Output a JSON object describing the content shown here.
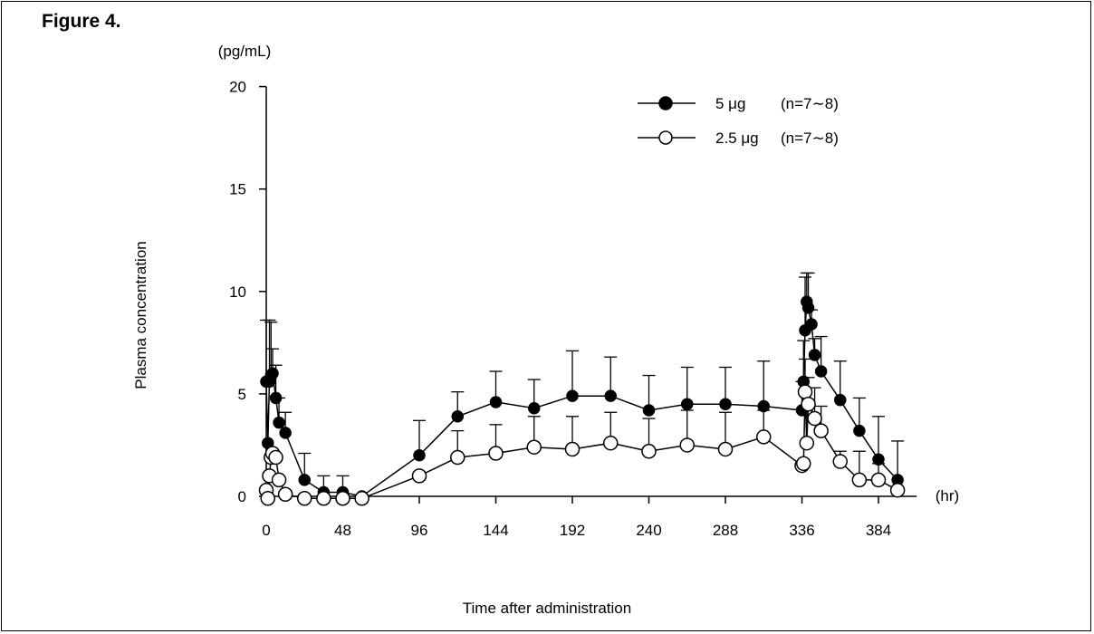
{
  "figure_label": "Figure 4.",
  "chart_data": {
    "type": "line",
    "title": "",
    "ylabel": "Plasma concentration",
    "ylabel_unit": "(pg/mL)",
    "xlabel": "Time after administration",
    "xlabel_unit": "(hr)",
    "xlim": [
      0,
      408
    ],
    "ylim": [
      0,
      20
    ],
    "xticks": [
      0,
      48,
      96,
      144,
      192,
      240,
      288,
      336,
      384
    ],
    "yticks": [
      0,
      5,
      10,
      15,
      20
    ],
    "legend": [
      {
        "marker": "filled",
        "label": "5 μg",
        "note": "(n=7∼8)"
      },
      {
        "marker": "open",
        "label": "2.5 μg",
        "note": "(n=7∼8)"
      }
    ],
    "series": [
      {
        "name": "5 μg",
        "marker": "filled",
        "x": [
          0,
          1,
          2,
          3,
          4,
          6,
          8,
          12,
          24,
          36,
          48,
          60,
          96,
          120,
          144,
          168,
          192,
          216,
          240,
          264,
          288,
          312,
          336,
          337,
          338,
          339,
          340,
          342,
          344,
          348,
          360,
          372,
          384,
          396
        ],
        "y": [
          5.6,
          2.6,
          5.6,
          5.9,
          6.0,
          4.8,
          3.6,
          3.1,
          0.8,
          0.2,
          0.2,
          0.0,
          2.0,
          3.9,
          4.6,
          4.3,
          4.9,
          4.9,
          4.2,
          4.5,
          4.5,
          4.4,
          4.2,
          5.6,
          8.1,
          9.5,
          9.2,
          8.4,
          6.9,
          6.1,
          4.7,
          3.2,
          1.8,
          0.8
        ],
        "err": [
          3.0,
          0,
          3.0,
          2.6,
          1.2,
          1.6,
          1.2,
          1.0,
          1.3,
          0.8,
          0.8,
          0,
          1.7,
          1.2,
          1.5,
          1.4,
          2.2,
          1.9,
          1.7,
          1.8,
          1.8,
          2.2,
          1.4,
          2.0,
          2.6,
          1.4,
          1.7,
          0.7,
          0.8,
          1.7,
          1.9,
          1.6,
          2.1,
          1.9
        ]
      },
      {
        "name": "2.5 μg",
        "marker": "open",
        "x": [
          0,
          1,
          2,
          3,
          4,
          6,
          8,
          12,
          24,
          36,
          48,
          60,
          96,
          120,
          144,
          168,
          192,
          216,
          240,
          264,
          288,
          312,
          336,
          337,
          338,
          339,
          340,
          344,
          348,
          360,
          372,
          384,
          396
        ],
        "y": [
          0.3,
          -0.1,
          1.0,
          1.9,
          2.1,
          1.9,
          0.8,
          0.1,
          -0.1,
          -0.1,
          -0.1,
          -0.1,
          1.0,
          1.9,
          2.1,
          2.4,
          2.3,
          2.6,
          2.2,
          2.5,
          2.3,
          2.9,
          1.5,
          1.6,
          5.1,
          2.6,
          4.5,
          3.8,
          3.2,
          1.7,
          0.8,
          0.8,
          0.3
        ],
        "err": [
          0,
          0,
          0,
          0,
          0,
          0,
          0,
          0,
          0,
          0,
          0,
          0,
          0,
          1.3,
          1.4,
          1.5,
          1.6,
          1.5,
          1.6,
          1.7,
          1.8,
          1.3,
          0,
          0,
          1.6,
          1.6,
          1.3,
          1.5,
          1.2,
          0.5,
          1.4,
          0.8,
          0
        ]
      }
    ]
  }
}
